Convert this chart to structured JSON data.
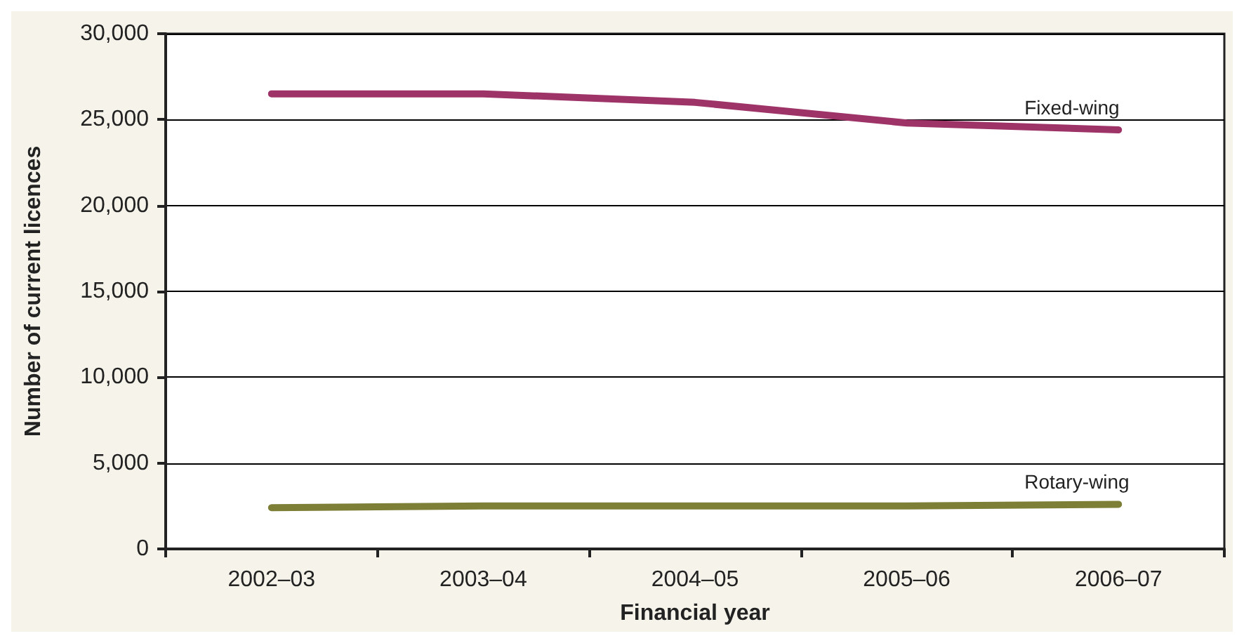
{
  "chart_data": {
    "type": "line",
    "xlabel": "Financial year",
    "ylabel": "Number of current licences",
    "categories": [
      "2002–03",
      "2003–04",
      "2004–05",
      "2005–06",
      "2006–07"
    ],
    "series": [
      {
        "name": "Fixed-wing",
        "color": "#9e3368",
        "values": [
          26500,
          26500,
          26000,
          24800,
          24400
        ]
      },
      {
        "name": "Rotary-wing",
        "color": "#7d7f37",
        "values": [
          2400,
          2500,
          2500,
          2500,
          2600
        ]
      }
    ],
    "ylim": [
      0,
      30000
    ],
    "yticks": [
      0,
      {
        "value": 5000,
        "label": "5,000"
      },
      {
        "value": 10000,
        "label": "10,000"
      },
      {
        "value": 15000,
        "label": "15,000"
      },
      {
        "value": 20000,
        "label": "20,000"
      },
      {
        "value": 25000,
        "label": "25,000"
      },
      {
        "value": 30000,
        "label": "30,000"
      }
    ],
    "grid": "y",
    "legend": false,
    "marker": "none",
    "line_style": "solid"
  }
}
